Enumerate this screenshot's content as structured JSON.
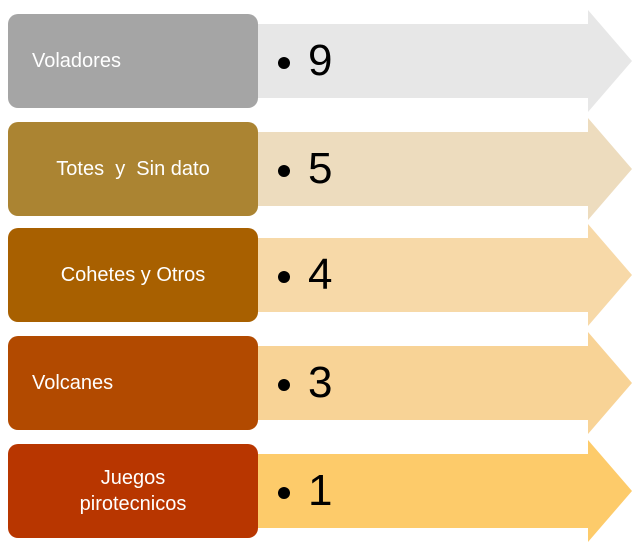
{
  "items": [
    {
      "label": "Voladores",
      "value": 9
    },
    {
      "label": "Totes  y  Sin dato",
      "value": 5
    },
    {
      "label": "Cohetes y Otros",
      "value": 4
    },
    {
      "label": "Volcanes",
      "value": 3
    },
    {
      "label": "Juegos pirotecnicos",
      "value": 1
    }
  ]
}
